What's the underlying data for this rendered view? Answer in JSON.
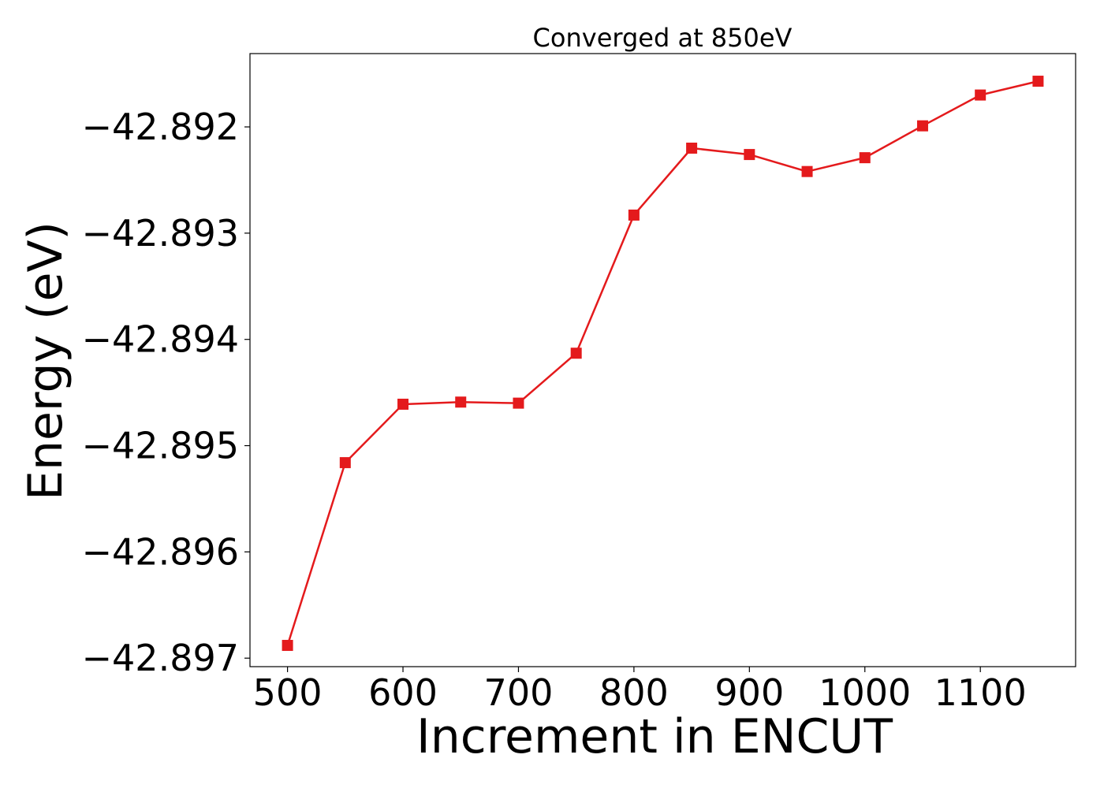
{
  "chart_data": {
    "type": "line",
    "title": "Converged at 850eV",
    "xlabel": "Increment in ENCUT",
    "ylabel": "Energy (eV)",
    "xlim": [
      467.5,
      1182.5
    ],
    "ylim": [
      -42.89708,
      -42.89131
    ],
    "xticks": [
      500,
      600,
      700,
      800,
      900,
      1000,
      1100
    ],
    "yticks": [
      -42.897,
      -42.896,
      -42.895,
      -42.894,
      -42.893,
      -42.892
    ],
    "ytick_labels": [
      "−42.897",
      "−42.896",
      "−42.895",
      "−42.894",
      "−42.893",
      "−42.892"
    ],
    "grid": false,
    "legend": "none",
    "series": [
      {
        "color": "#e41a1c",
        "marker": "square",
        "x": [
          500,
          550,
          600,
          650,
          700,
          750,
          800,
          850,
          900,
          950,
          1000,
          1050,
          1100,
          1150
        ],
        "y": [
          -42.89688,
          -42.89516,
          -42.89461,
          -42.89459,
          -42.8946,
          -42.89413,
          -42.89283,
          -42.8922,
          -42.89226,
          -42.89242,
          -42.89229,
          -42.89199,
          -42.8917,
          -42.89157
        ]
      }
    ]
  }
}
